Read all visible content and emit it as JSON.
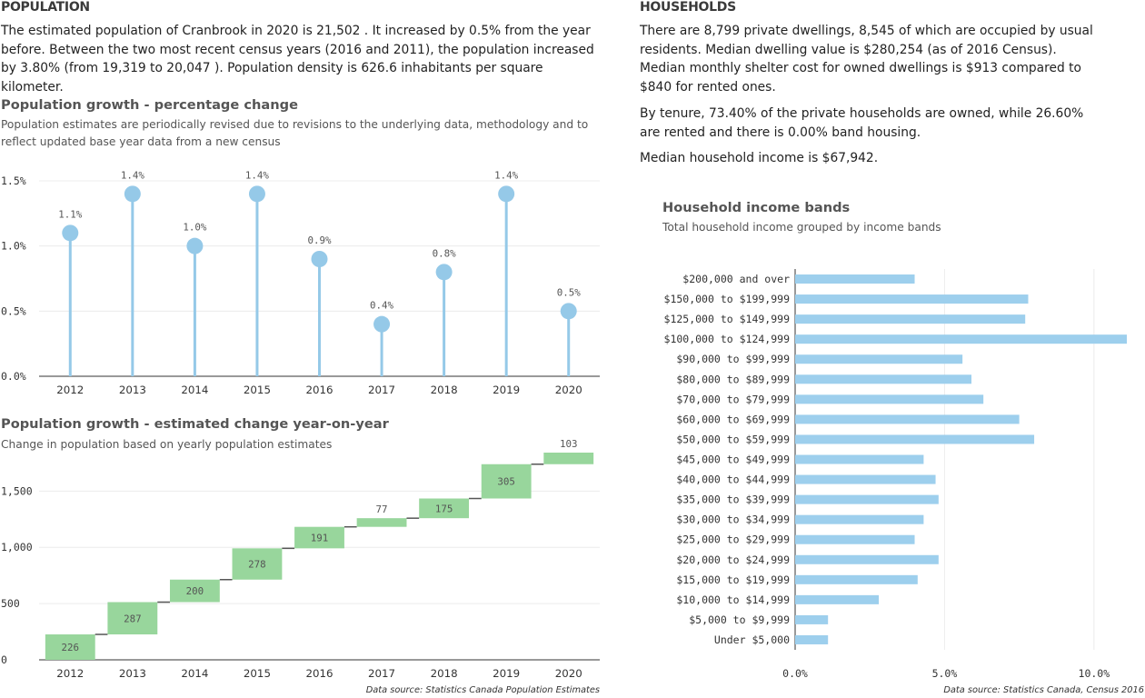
{
  "population": {
    "heading": "POPULATION",
    "paragraph": "The estimated population of Cranbrook in 2020 is 21,502 . It increased by 0.5% from the year before. Between the two most recent census years (2016 and 2011), the population increased by 3.80% (from 19,319 to 20,047 ). Population density is 626.6 inhabitants per square kilometer."
  },
  "households": {
    "heading": "HOUSEHOLDS",
    "paragraphs": [
      "There are 8,799 private dwellings, 8,545 of which are occupied by usual residents. Median dwelling value is $280,254 (as of 2016 Census). Median monthly shelter cost for owned dwellings is $913 compared to $840 for rented ones.",
      "By tenure, 73.40% of the private households are owned, while 26.60% are rented and there is 0.00% band housing.",
      "Median household income is $67,942."
    ]
  },
  "growth_chart": {
    "title": "Population growth - percentage change",
    "subtitle": "Population estimates are periodically revised due to revisions to the underlying data, methodology and to reflect updated base year data from a new census"
  },
  "waterfall_chart": {
    "title": "Population growth - estimated change year-on-year",
    "subtitle": "Change in population based on yearly population estimates",
    "source": "Data source: Statistics Canada Population Estimates"
  },
  "income_chart": {
    "title": "Household income bands",
    "subtitle": "Total household income grouped by income bands",
    "source": "Data source: Statistics Canada, Census 2016"
  },
  "colors": {
    "lollipop": "#95c9e8",
    "waterfall": "#98d69c",
    "bars": "#9dcfed",
    "connector": "#555555"
  },
  "chart_data": [
    {
      "type": "lollipop",
      "categories": [
        "2012",
        "2013",
        "2014",
        "2015",
        "2016",
        "2017",
        "2018",
        "2019",
        "2020"
      ],
      "values": [
        1.1,
        1.4,
        1.0,
        1.4,
        0.9,
        0.4,
        0.8,
        1.4,
        0.5
      ],
      "data_labels": [
        "1.1%",
        "1.4%",
        "1.0%",
        "1.4%",
        "0.9%",
        "0.4%",
        "0.8%",
        "1.4%",
        "0.5%"
      ],
      "ylim": [
        0,
        1.5
      ],
      "yticks": [
        0,
        0.5,
        1.0,
        1.5
      ],
      "ytick_labels": [
        "0.0%",
        "0.5%",
        "1.0%",
        "1.5%"
      ],
      "grid": true
    },
    {
      "type": "waterfall",
      "categories": [
        "2012",
        "2013",
        "2014",
        "2015",
        "2016",
        "2017",
        "2018",
        "2019",
        "2020"
      ],
      "values": [
        226,
        287,
        200,
        278,
        191,
        77,
        175,
        305,
        103
      ],
      "ylim": [
        0,
        1842
      ],
      "yticks": [
        0,
        500,
        1000,
        1500
      ],
      "ytick_labels": [
        "0",
        "500",
        "1,000",
        "1,500"
      ],
      "grid": true
    },
    {
      "type": "bar",
      "orientation": "horizontal",
      "categories": [
        "$200,000 and over",
        "$150,000 to $199,999",
        "$125,000 to $149,999",
        "$100,000 to $124,999",
        "$90,000 to $99,999",
        "$80,000 to $89,999",
        "$70,000 to $79,999",
        "$60,000 to $69,999",
        "$50,000 to $59,999",
        "$45,000 to $49,999",
        "$40,000 to $44,999",
        "$35,000 to $39,999",
        "$30,000 to $34,999",
        "$25,000 to $29,999",
        "$20,000 to $24,999",
        "$15,000 to $19,999",
        "$10,000 to $14,999",
        "$5,000 to $9,999",
        "Under $5,000"
      ],
      "values": [
        4.0,
        7.8,
        7.7,
        11.1,
        5.6,
        5.9,
        6.3,
        7.5,
        8.0,
        4.3,
        4.7,
        4.8,
        4.3,
        4.0,
        4.8,
        4.1,
        2.8,
        1.1,
        1.1
      ],
      "xlim": [
        0,
        11.1
      ],
      "xticks": [
        0,
        5,
        10
      ],
      "xtick_labels": [
        "0.0%",
        "5.0%",
        "10.0%"
      ],
      "grid": true
    }
  ]
}
